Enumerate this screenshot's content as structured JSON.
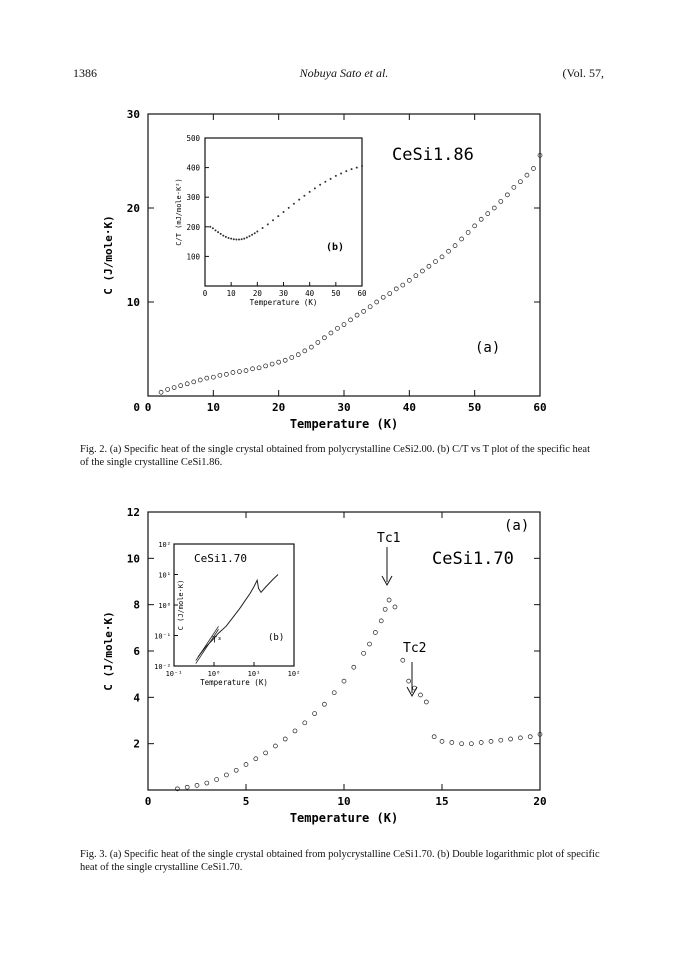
{
  "header": {
    "page_number": "1386",
    "author": "Nobuya Sato et al.",
    "volume": "(Vol. 57,"
  },
  "fig2": {
    "caption": "Fig. 2.   (a) Specific heat of the single crystal obtained from polycrystalline CeSi2.00. (b) C/T vs T plot of the specific heat of the single crystalline CeSi1.86.",
    "compound": "CeSi1.86",
    "panel_label": "(a)",
    "inset_label": "(b)",
    "chart_data": [
      {
        "type": "scatter",
        "xlabel": "Temperature (K)",
        "ylabel": "C (J/mole·K)",
        "xlim": [
          0,
          60
        ],
        "ylim": [
          0,
          30
        ],
        "x_ticks": [
          "0",
          "10",
          "20",
          "30",
          "40",
          "50",
          "60"
        ],
        "y_ticks": [
          "10",
          "20",
          "30"
        ],
        "x": [
          2,
          3,
          4,
          5,
          6,
          7,
          8,
          9,
          10,
          11,
          12,
          13,
          14,
          15,
          16,
          17,
          18,
          19,
          20,
          21,
          22,
          23,
          24,
          25,
          26,
          27,
          28,
          29,
          30,
          31,
          32,
          33,
          34,
          35,
          36,
          37,
          38,
          39,
          40,
          41,
          42,
          43,
          44,
          45,
          46,
          47,
          48,
          49,
          50,
          51,
          52,
          53,
          54,
          55,
          56,
          57,
          58,
          59,
          60
        ],
        "y": [
          0.4,
          0.7,
          0.9,
          1.1,
          1.3,
          1.5,
          1.7,
          1.9,
          2.0,
          2.2,
          2.3,
          2.5,
          2.6,
          2.7,
          2.9,
          3.0,
          3.2,
          3.4,
          3.6,
          3.8,
          4.1,
          4.4,
          4.8,
          5.2,
          5.7,
          6.2,
          6.7,
          7.2,
          7.6,
          8.1,
          8.6,
          9.0,
          9.5,
          10.0,
          10.5,
          10.9,
          11.4,
          11.8,
          12.3,
          12.8,
          13.3,
          13.8,
          14.3,
          14.8,
          15.4,
          16.0,
          16.7,
          17.4,
          18.1,
          18.8,
          19.4,
          20.0,
          20.7,
          21.4,
          22.2,
          22.8,
          23.5,
          24.2,
          25.6
        ]
      },
      {
        "type": "scatter",
        "xlabel": "Temperature (K)",
        "ylabel": "C/T (mJ/mole·K²)",
        "xlim": [
          0,
          60
        ],
        "ylim": [
          0,
          500
        ],
        "x_ticks": [
          "0",
          "10",
          "20",
          "30",
          "40",
          "50",
          "60"
        ],
        "y_ticks": [
          "100",
          "200",
          "300",
          "400",
          "500"
        ],
        "x": [
          2,
          3,
          4,
          5,
          6,
          7,
          8,
          9,
          10,
          11,
          12,
          13,
          14,
          15,
          16,
          17,
          18,
          19,
          20,
          22,
          24,
          26,
          28,
          30,
          32,
          34,
          36,
          38,
          40,
          42,
          44,
          46,
          48,
          50,
          52,
          54,
          56,
          58,
          60
        ],
        "y": [
          200,
          195,
          188,
          182,
          176,
          170,
          166,
          162,
          160,
          158,
          157,
          157,
          158,
          160,
          164,
          168,
          173,
          178,
          184,
          196,
          208,
          222,
          236,
          250,
          264,
          278,
          292,
          305,
          318,
          330,
          342,
          352,
          362,
          372,
          380,
          388,
          395,
          400,
          405
        ]
      }
    ]
  },
  "fig3": {
    "caption": "Fig. 3.   (a) Specific heat of the single crystal obtained from polycrystalline CeSi1.70. (b) Double logarithmic plot of specific heat of the single crystalline CeSi1.70.",
    "compound": "CeSi1.70",
    "panel_label": "(a)",
    "inset_label": "(b)",
    "tc1_label": "Tc1",
    "tc2_label": "Tc2",
    "t3_label": "T³",
    "chart_data": [
      {
        "type": "scatter",
        "xlabel": "Temperature (K)",
        "ylabel": "C (J/mole·K)",
        "xlim": [
          0,
          20
        ],
        "ylim": [
          0,
          12
        ],
        "x_ticks": [
          "0",
          "5",
          "10",
          "15",
          "20"
        ],
        "y_ticks": [
          "2",
          "4",
          "6",
          "8",
          "10",
          "12"
        ],
        "x": [
          1.5,
          2,
          2.5,
          3,
          3.5,
          4,
          4.5,
          5,
          5.5,
          6,
          6.5,
          7,
          7.5,
          8,
          8.5,
          9,
          9.5,
          10,
          10.5,
          11,
          11.3,
          11.6,
          11.9,
          12.1,
          12.3,
          12.6,
          13,
          13.3,
          13.6,
          13.9,
          14.2,
          14.6,
          15,
          15.5,
          16,
          16.5,
          17,
          17.5,
          18,
          18.5,
          19,
          19.5,
          20
        ],
        "y": [
          0.05,
          0.12,
          0.2,
          0.3,
          0.45,
          0.65,
          0.85,
          1.1,
          1.35,
          1.6,
          1.9,
          2.2,
          2.55,
          2.9,
          3.3,
          3.7,
          4.2,
          4.7,
          5.3,
          5.9,
          6.3,
          6.8,
          7.3,
          7.8,
          8.2,
          7.9,
          5.6,
          4.7,
          4.4,
          4.1,
          3.8,
          2.3,
          2.1,
          2.05,
          2.0,
          2.0,
          2.05,
          2.1,
          2.15,
          2.2,
          2.25,
          2.3,
          2.4
        ]
      },
      {
        "type": "line",
        "xlabel": "Temperature (K)",
        "ylabel": "C (J/mole·K)",
        "log_scale": true,
        "x_ticks": [
          "10⁻¹",
          "10⁰",
          "10¹",
          "10²"
        ],
        "y_ticks": [
          "10⁻²",
          "10⁻¹",
          "10⁰",
          "10¹",
          "10²"
        ],
        "x": [
          0.4,
          0.6,
          0.9,
          1.3,
          2,
          3,
          4.5,
          6,
          8,
          10,
          12,
          13,
          15,
          20,
          30,
          40
        ],
        "y": [
          0.02,
          0.04,
          0.07,
          0.12,
          0.2,
          0.4,
          0.8,
          1.4,
          2.4,
          4,
          6.5,
          3.5,
          2.6,
          4,
          7,
          10
        ]
      }
    ]
  }
}
